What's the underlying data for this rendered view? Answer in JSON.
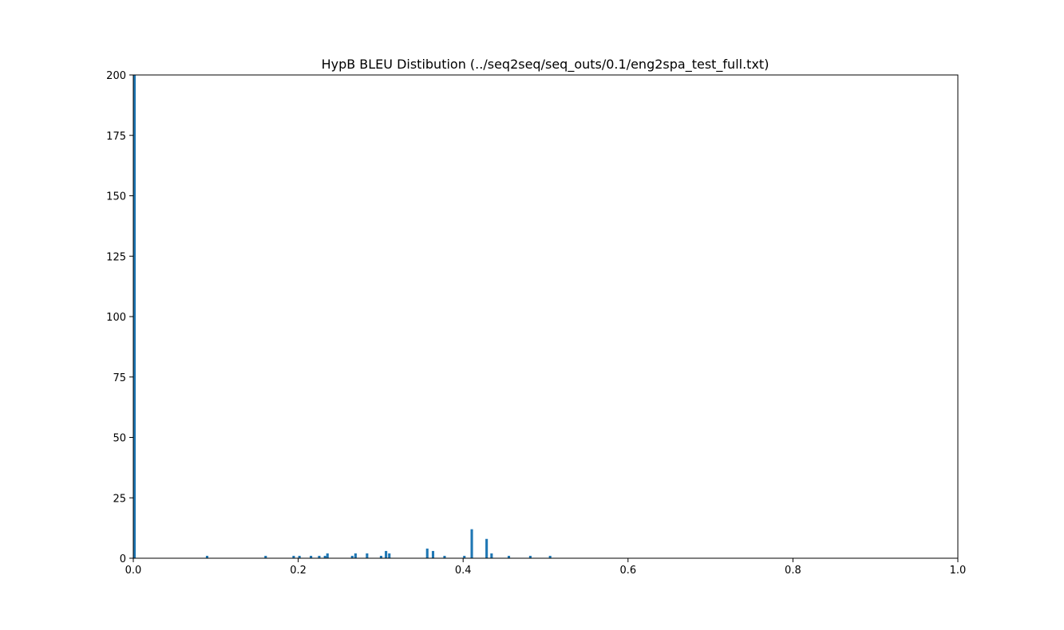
{
  "chart_data": {
    "type": "bar",
    "title": "HypB BLEU Distibution (../seq2seq/seq_outs/0.1/eng2spa_test_full.txt)",
    "xlabel": "",
    "ylabel": "",
    "xlim": [
      0.0,
      1.0
    ],
    "ylim": [
      0,
      200
    ],
    "x_ticks": [
      "0.0",
      "0.2",
      "0.4",
      "0.6",
      "0.8",
      "1.0"
    ],
    "y_ticks": [
      "0",
      "25",
      "50",
      "75",
      "100",
      "125",
      "150",
      "175",
      "200"
    ],
    "bin_width": 0.003,
    "bar_color": "#1f77b4",
    "grid": false,
    "legend": "none",
    "bins": [
      {
        "x": 0.0,
        "count": 200
      },
      {
        "x": 0.088,
        "count": 1
      },
      {
        "x": 0.159,
        "count": 1
      },
      {
        "x": 0.193,
        "count": 1
      },
      {
        "x": 0.2,
        "count": 1
      },
      {
        "x": 0.214,
        "count": 1
      },
      {
        "x": 0.224,
        "count": 1
      },
      {
        "x": 0.231,
        "count": 1
      },
      {
        "x": 0.234,
        "count": 2
      },
      {
        "x": 0.264,
        "count": 1
      },
      {
        "x": 0.268,
        "count": 2
      },
      {
        "x": 0.282,
        "count": 2
      },
      {
        "x": 0.299,
        "count": 1
      },
      {
        "x": 0.305,
        "count": 3
      },
      {
        "x": 0.309,
        "count": 2
      },
      {
        "x": 0.355,
        "count": 4
      },
      {
        "x": 0.362,
        "count": 3
      },
      {
        "x": 0.376,
        "count": 1
      },
      {
        "x": 0.4,
        "count": 1
      },
      {
        "x": 0.409,
        "count": 12
      },
      {
        "x": 0.427,
        "count": 8
      },
      {
        "x": 0.433,
        "count": 2
      },
      {
        "x": 0.454,
        "count": 1
      },
      {
        "x": 0.48,
        "count": 1
      },
      {
        "x": 0.504,
        "count": 1
      }
    ]
  }
}
